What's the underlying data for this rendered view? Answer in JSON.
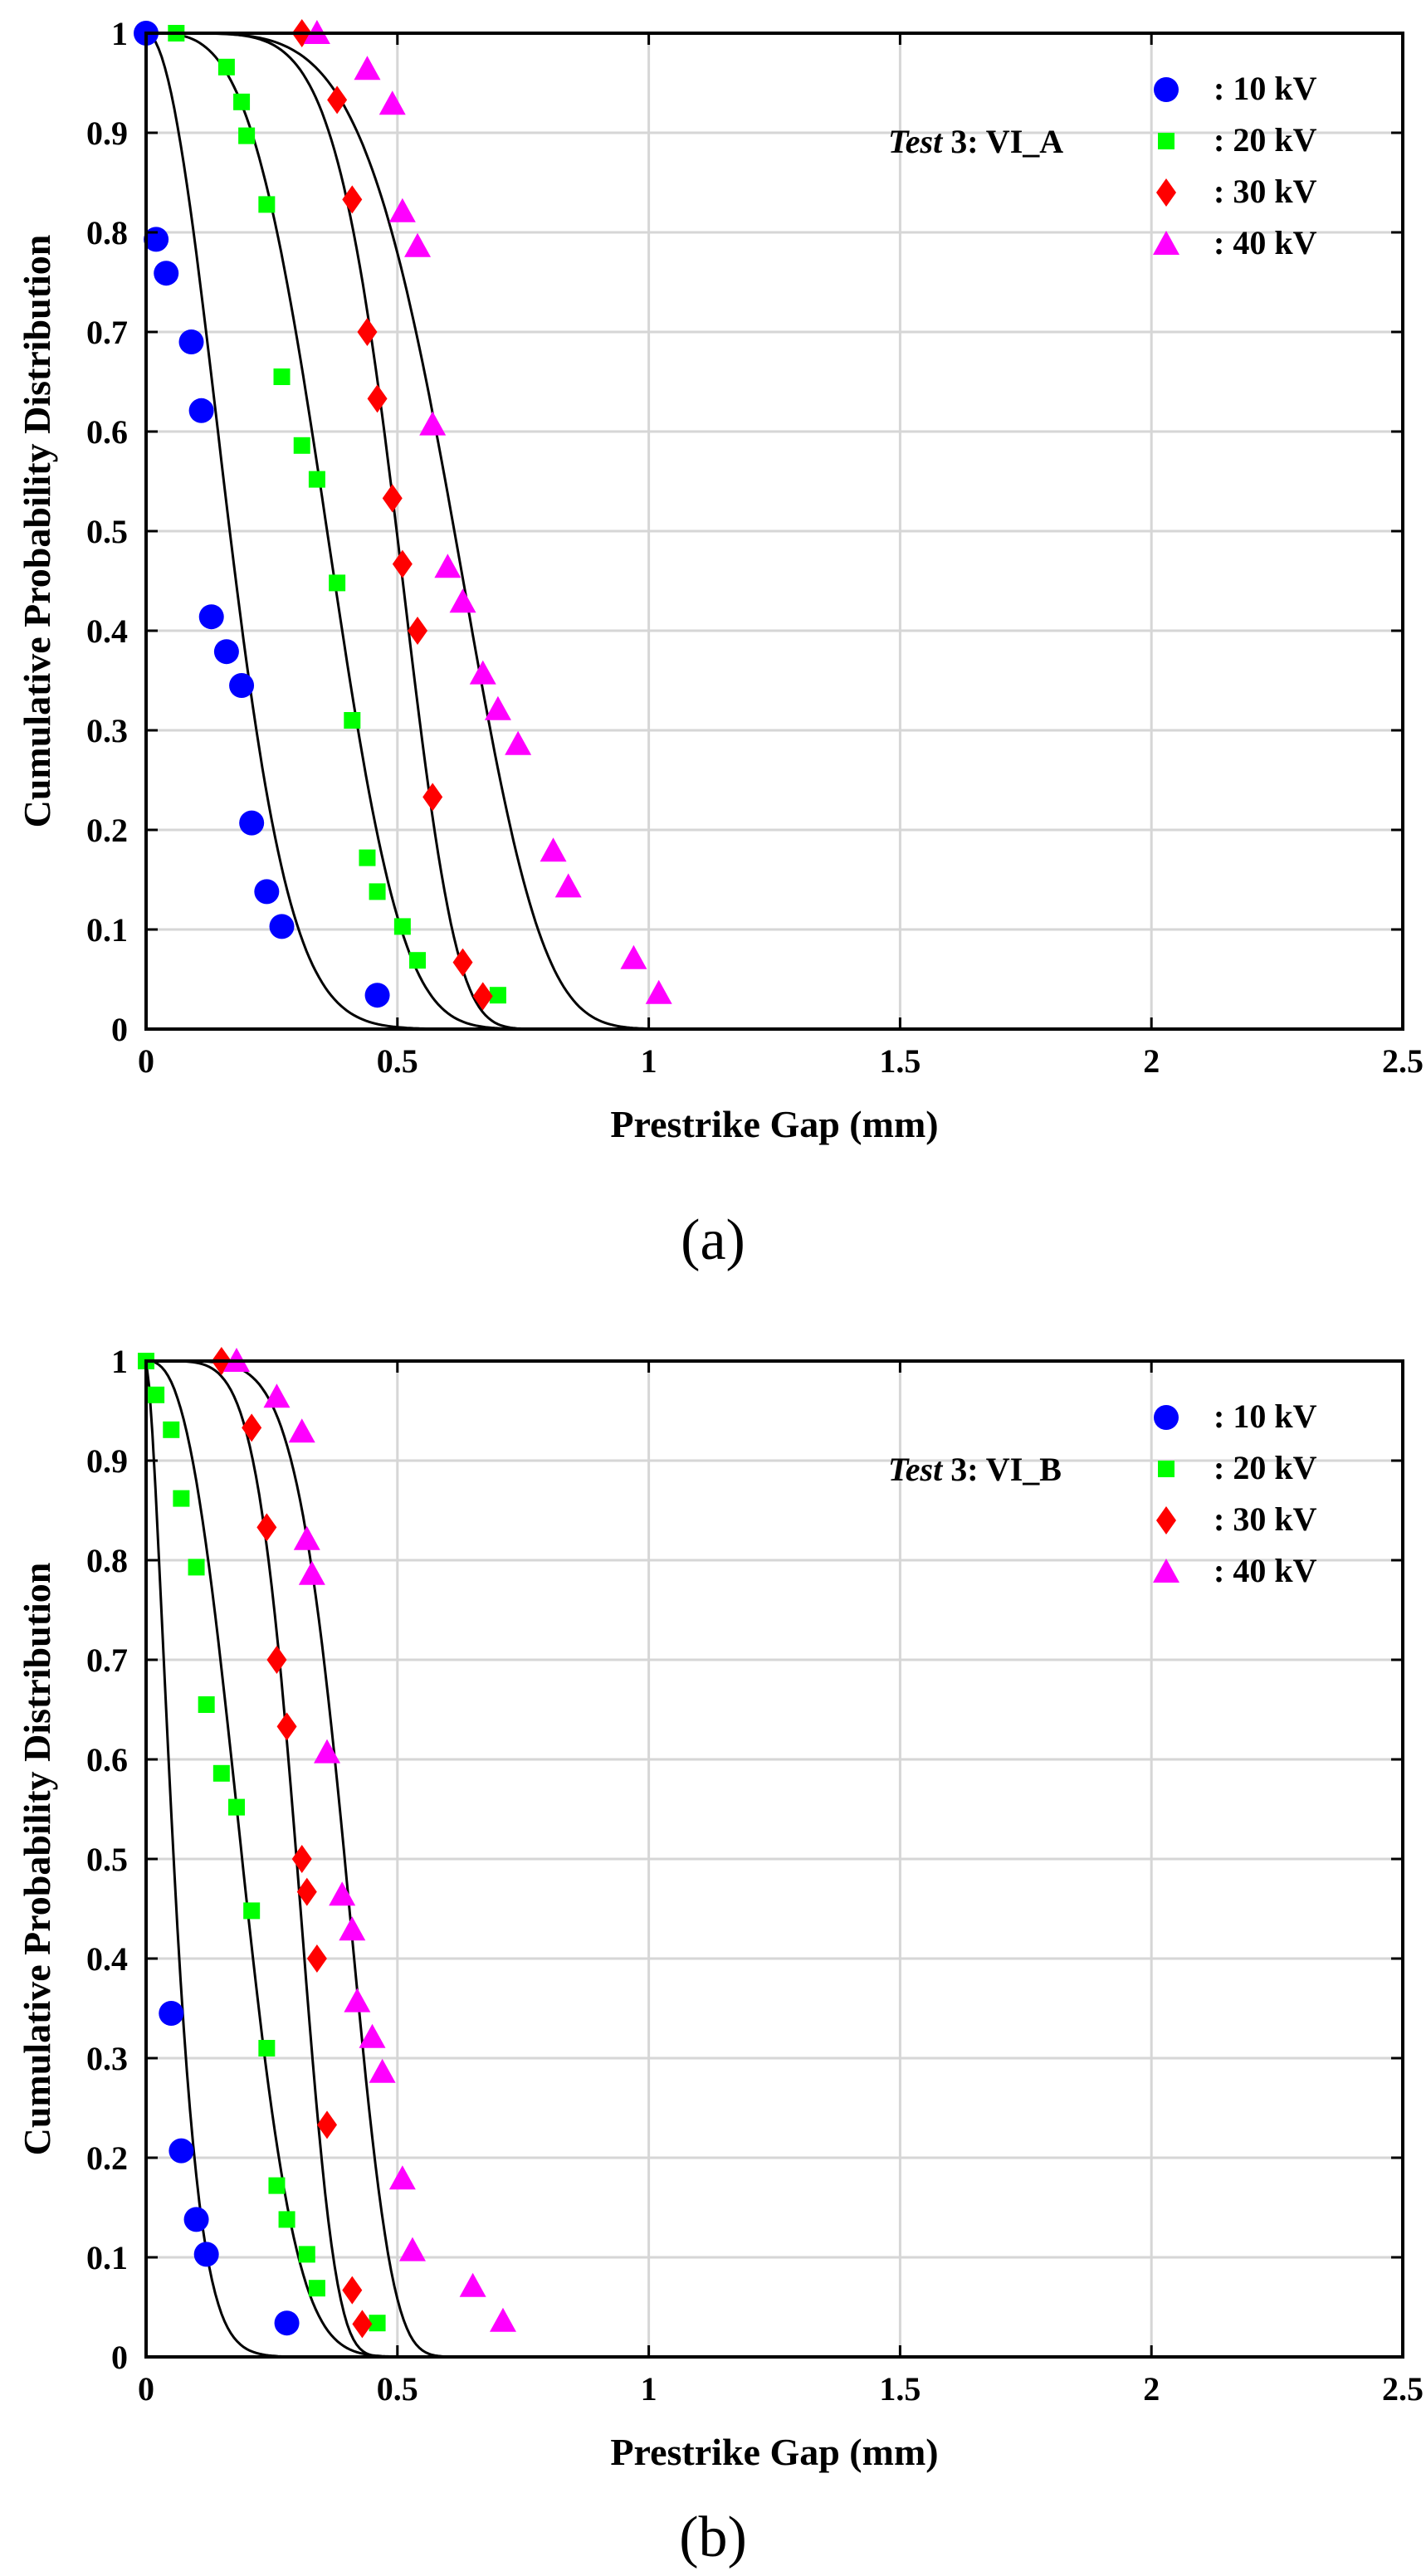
{
  "charts": [
    {
      "panel_label": "(a)",
      "annotation_italic": "Test",
      "annotation_rest": " 3: VI_A"
    },
    {
      "panel_label": "(b)",
      "annotation_italic": "Test",
      "annotation_rest": " 3: VI_B"
    }
  ],
  "chart_data": [
    {
      "type": "scatter",
      "title": "",
      "xlabel": "Prestrike Gap (mm)",
      "ylabel": "Cumulative Probability Distribution",
      "xlim": [
        0,
        2.5
      ],
      "ylim": [
        0,
        1
      ],
      "xticks": [
        "0",
        "0.5",
        "1",
        "1.5",
        "2",
        "2.5"
      ],
      "yticks": [
        "0",
        "0.1",
        "0.2",
        "0.3",
        "0.4",
        "0.5",
        "0.6",
        "0.7",
        "0.8",
        "0.9",
        "1"
      ],
      "grid": true,
      "legend_position": "top-right",
      "fit_curves": "black solid lines",
      "series": [
        {
          "name": ": 10 kV",
          "marker": "circle",
          "color": "#0000ff",
          "x": [
            0.0,
            0.02,
            0.04,
            0.09,
            0.11,
            0.13,
            0.16,
            0.19,
            0.21,
            0.24,
            0.27,
            0.46
          ],
          "y": [
            1.0,
            0.793,
            0.759,
            0.69,
            0.621,
            0.414,
            0.379,
            0.345,
            0.207,
            0.138,
            0.103,
            0.034
          ],
          "fit": {
            "scale": 0.2,
            "shape": 2.0
          }
        },
        {
          "name": ": 20 kV",
          "marker": "square",
          "color": "#00ff00",
          "x": [
            0.06,
            0.16,
            0.19,
            0.2,
            0.24,
            0.27,
            0.31,
            0.34,
            0.38,
            0.41,
            0.44,
            0.46,
            0.51,
            0.54,
            0.7
          ],
          "y": [
            1.0,
            0.966,
            0.931,
            0.897,
            0.828,
            0.655,
            0.586,
            0.552,
            0.448,
            0.31,
            0.172,
            0.138,
            0.103,
            0.069,
            0.034
          ],
          "fit": {
            "scale": 0.4,
            "shape": 3.5
          }
        },
        {
          "name": ": 30 kV",
          "marker": "diamond",
          "color": "#ff0000",
          "x": [
            0.31,
            0.38,
            0.41,
            0.44,
            0.46,
            0.49,
            0.51,
            0.54,
            0.57,
            0.63,
            0.67
          ],
          "y": [
            1.0,
            0.933,
            0.833,
            0.7,
            0.633,
            0.533,
            0.467,
            0.4,
            0.233,
            0.067,
            0.033
          ],
          "fit": {
            "scale": 0.53,
            "shape": 6.0
          }
        },
        {
          "name": ": 40 kV",
          "marker": "triangle",
          "color": "#ff00ff",
          "x": [
            0.34,
            0.44,
            0.49,
            0.51,
            0.54,
            0.57,
            0.6,
            0.63,
            0.67,
            0.7,
            0.74,
            0.81,
            0.84,
            0.97,
            1.02
          ],
          "y": [
            1.0,
            0.964,
            0.929,
            0.821,
            0.786,
            0.607,
            0.464,
            0.429,
            0.357,
            0.321,
            0.286,
            0.179,
            0.143,
            0.071,
            0.036
          ],
          "fit": {
            "scale": 0.66,
            "shape": 5.0
          }
        }
      ]
    },
    {
      "type": "scatter",
      "title": "",
      "xlabel": "Prestrike Gap (mm)",
      "ylabel": "Cumulative Probability Distribution",
      "xlim": [
        0,
        2.5
      ],
      "ylim": [
        0,
        1
      ],
      "xticks": [
        "0",
        "0.5",
        "1",
        "1.5",
        "2",
        "2.5"
      ],
      "yticks": [
        "0",
        "0.1",
        "0.2",
        "0.3",
        "0.4",
        "0.5",
        "0.6",
        "0.7",
        "0.8",
        "0.9",
        "1"
      ],
      "grid": true,
      "legend_position": "top-right",
      "fit_curves": "black solid lines",
      "series": [
        {
          "name": ": 10 kV",
          "marker": "circle",
          "color": "#0000ff",
          "x": [
            0.05,
            0.07,
            0.1,
            0.12,
            0.28
          ],
          "y": [
            0.345,
            0.207,
            0.138,
            0.103,
            0.034
          ],
          "fit": {
            "scale": 0.07,
            "shape": 1.5
          }
        },
        {
          "name": ": 20 kV",
          "marker": "square",
          "color": "#00ff00",
          "x": [
            0.0,
            0.02,
            0.05,
            0.07,
            0.1,
            0.12,
            0.15,
            0.18,
            0.21,
            0.24,
            0.26,
            0.28,
            0.32,
            0.34,
            0.46
          ],
          "y": [
            1.0,
            0.966,
            0.931,
            0.862,
            0.793,
            0.655,
            0.586,
            0.552,
            0.448,
            0.31,
            0.172,
            0.138,
            0.103,
            0.069,
            0.034
          ],
          "fit": {
            "scale": 0.22,
            "shape": 2.6
          }
        },
        {
          "name": ": 30 kV",
          "marker": "diamond",
          "color": "#ff0000",
          "x": [
            0.15,
            0.21,
            0.24,
            0.26,
            0.28,
            0.31,
            0.32,
            0.34,
            0.36,
            0.41,
            0.43
          ],
          "y": [
            1.0,
            0.933,
            0.833,
            0.7,
            0.633,
            0.5,
            0.467,
            0.4,
            0.233,
            0.067,
            0.033
          ],
          "fit": {
            "scale": 0.32,
            "shape": 5.5
          }
        },
        {
          "name": ": 40 kV",
          "marker": "triangle",
          "color": "#ff00ff",
          "x": [
            0.18,
            0.26,
            0.31,
            0.32,
            0.33,
            0.36,
            0.39,
            0.41,
            0.42,
            0.45,
            0.47,
            0.51,
            0.53,
            0.65,
            0.71
          ],
          "y": [
            1.0,
            0.964,
            0.929,
            0.821,
            0.786,
            0.607,
            0.464,
            0.429,
            0.357,
            0.321,
            0.286,
            0.179,
            0.107,
            0.071,
            0.036
          ],
          "fit": {
            "scale": 0.42,
            "shape": 6.0
          }
        }
      ]
    }
  ]
}
